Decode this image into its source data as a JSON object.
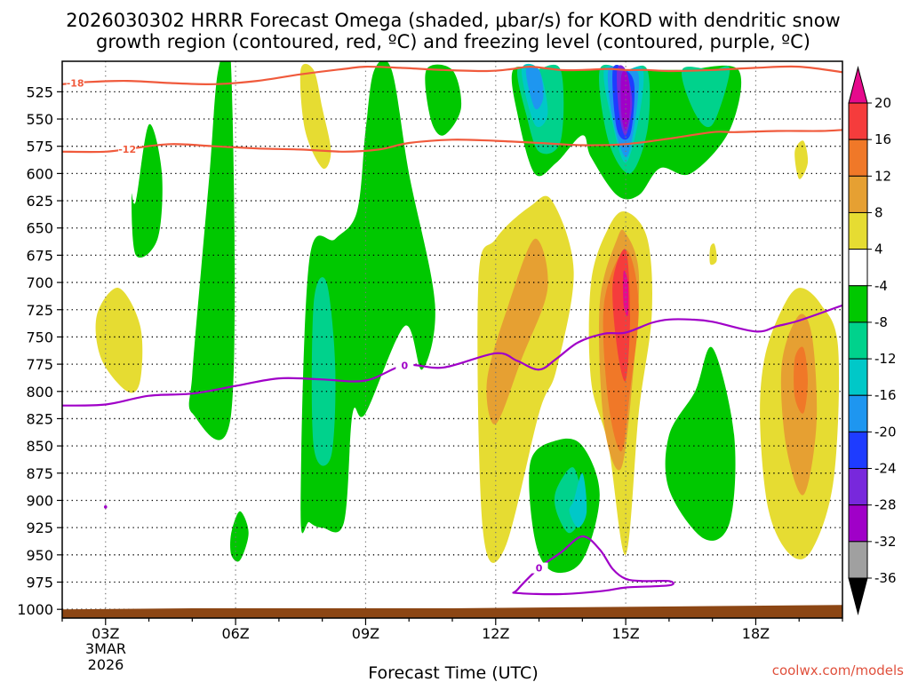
{
  "chart_data": {
    "type": "contour",
    "title_line1": "2026030302 HRRR Forecast Omega (shaded, μbar/s) for KORD with dendritic snow",
    "title_line2": "growth region (contoured, red, ºC) and freezing level (contoured, purple, ºC)",
    "xlabel": "Forecast Time (UTC)",
    "credit": "coolwx.com/models",
    "date_label": [
      "3MAR",
      "2026"
    ],
    "x_range": [
      2,
      20
    ],
    "y_range": [
      1008,
      497
    ],
    "y_ticks": [
      525,
      550,
      575,
      600,
      625,
      650,
      675,
      700,
      725,
      750,
      775,
      800,
      825,
      850,
      875,
      900,
      925,
      950,
      975,
      1000
    ],
    "x_ticks": [
      {
        "hour": 3,
        "label": "03Z"
      },
      {
        "hour": 6,
        "label": "06Z"
      },
      {
        "hour": 9,
        "label": "09Z"
      },
      {
        "hour": 12,
        "label": "12Z"
      },
      {
        "hour": 15,
        "label": "15Z"
      },
      {
        "hour": 18,
        "label": "18Z"
      }
    ],
    "colorbar": {
      "levels": [
        -36,
        -32,
        -28,
        -24,
        -20,
        -16,
        -12,
        -8,
        -4,
        4,
        8,
        12,
        16,
        20
      ],
      "labels": [
        "20",
        "16",
        "12",
        "8",
        "4",
        "-4",
        "-8",
        "-12",
        "-16",
        "-20",
        "-24",
        "-28",
        "-32",
        "-36"
      ],
      "colors": {
        "above_20": "#e60a8c",
        "16_20": "#f53c3c",
        "12_16": "#f07828",
        "8_12": "#e6a032",
        "4_8": "#e6dc32",
        "neutral": "#ffffff",
        "m8_m4": "#00c800",
        "m12_m8": "#00d28c",
        "m16_m12": "#00c8c8",
        "m20_m16": "#1e96f0",
        "m24_m20": "#1e3cff",
        "m28_m24": "#7828dc",
        "m32_m28": "#a000c8",
        "m36_m32": "#a0a0a0",
        "below_m36": "#000000"
      }
    },
    "omega_regions": [
      {
        "level": 4,
        "x": [
          2.8,
          3.3,
          3.8,
          3.8,
          3.5,
          2.9
        ],
        "y": [
          730,
          705,
          740,
          790,
          800,
          770
        ]
      },
      {
        "level": -4,
        "x": [
          3.7,
          4.0,
          4.3,
          4.2,
          3.7,
          3.6
        ],
        "y": [
          625,
          555,
          600,
          660,
          675,
          620
        ]
      },
      {
        "level": -4,
        "x": [
          5.0,
          5.2,
          5.4,
          5.6,
          5.9,
          5.9,
          5.0
        ],
        "y": [
          785,
          690,
          600,
          505,
          505,
          820,
          820
        ]
      },
      {
        "level": -4,
        "x": [
          5.9,
          6.1,
          6.3,
          6.1,
          5.9
        ],
        "y": [
          930,
          910,
          930,
          955,
          950
        ]
      },
      {
        "level": 4,
        "x": [
          7.5,
          7.8,
          8.0,
          8.2,
          8.0,
          7.6
        ],
        "y": [
          505,
          505,
          540,
          580,
          595,
          560
        ]
      },
      {
        "level": -4,
        "x": [
          7.5,
          7.7,
          8.3,
          8.8,
          9.0,
          9.2,
          9.6,
          10.0,
          10.6,
          10.3,
          9.9,
          9.0,
          8.7,
          8.5,
          8.0,
          7.7
        ],
        "y": [
          910,
          680,
          660,
          635,
          560,
          505,
          505,
          600,
          720,
          780,
          740,
          820,
          820,
          920,
          925,
          920
        ]
      },
      {
        "level": -8,
        "x": [
          7.8,
          8.1,
          8.3,
          8.2,
          7.8
        ],
        "y": [
          720,
          700,
          780,
          860,
          850
        ]
      },
      {
        "level": -4,
        "x": [
          10.4,
          11.0,
          11.2,
          10.8,
          10.5
        ],
        "y": [
          505,
          505,
          540,
          565,
          550
        ]
      },
      {
        "level": 4,
        "x": [
          11.6,
          12.0,
          12.8,
          13.3,
          13.8,
          13.4,
          13.0,
          12.2,
          11.7
        ],
        "y": [
          700,
          660,
          630,
          625,
          690,
          780,
          820,
          945,
          925
        ]
      },
      {
        "level": 8,
        "x": [
          11.8,
          12.3,
          12.9,
          13.2,
          12.6,
          12.0
        ],
        "y": [
          790,
          720,
          660,
          705,
          770,
          830
        ]
      },
      {
        "level": -4,
        "x": [
          12.8,
          13.4,
          14.0,
          14.4,
          14.0,
          13.3,
          12.9
        ],
        "y": [
          865,
          845,
          850,
          895,
          955,
          965,
          935
        ]
      },
      {
        "level": -8,
        "x": [
          13.4,
          13.8,
          14.0,
          13.7,
          13.4
        ],
        "y": [
          890,
          870,
          910,
          930,
          910
        ]
      },
      {
        "level": -12,
        "x": [
          13.8,
          14.0,
          14.1,
          13.9,
          13.7
        ],
        "y": [
          900,
          875,
          910,
          925,
          910
        ]
      },
      {
        "level": 4,
        "x": [
          14.2,
          14.6,
          15.0,
          15.5,
          15.6,
          15.3,
          15.0,
          14.6,
          14.2
        ],
        "y": [
          700,
          650,
          635,
          660,
          730,
          820,
          950,
          850,
          790
        ]
      },
      {
        "level": 8,
        "x": [
          14.4,
          14.8,
          15.0,
          15.3,
          15.2,
          14.9,
          14.5
        ],
        "y": [
          720,
          660,
          655,
          690,
          770,
          870,
          830
        ]
      },
      {
        "level": 12,
        "x": [
          14.5,
          15.0,
          15.3,
          15.1,
          14.9,
          14.6
        ],
        "y": [
          720,
          670,
          720,
          800,
          855,
          810
        ]
      },
      {
        "level": 16,
        "x": [
          14.7,
          15.0,
          15.1,
          15.0,
          14.8
        ],
        "y": [
          700,
          670,
          730,
          790,
          760
        ]
      },
      {
        "level": 20,
        "x": [
          14.95,
          15.05,
          15.05,
          14.95
        ],
        "y": [
          690,
          700,
          730,
          720
        ]
      },
      {
        "level": -4,
        "x": [
          12.4,
          13.0,
          13.5,
          13.9,
          14.1,
          14.5,
          15.3,
          15.9,
          16.0,
          16.4,
          17.6,
          17.4,
          16.5,
          15.8,
          15.3,
          14.8,
          14.2,
          14.0,
          13.4,
          12.9,
          12.5
        ],
        "y": [
          505,
          505,
          505,
          505,
          505,
          505,
          505,
          505,
          505,
          505,
          505,
          560,
          600,
          595,
          620,
          620,
          585,
          565,
          590,
          600,
          545
        ]
      },
      {
        "level": -8,
        "x": [
          12.5,
          12.9,
          13.5,
          13.5,
          13.0,
          12.7
        ],
        "y": [
          505,
          505,
          505,
          570,
          580,
          545
        ]
      },
      {
        "level": -12,
        "x": [
          12.6,
          13.0,
          13.2,
          12.9
        ],
        "y": [
          505,
          505,
          545,
          555
        ]
      },
      {
        "level": -16,
        "x": [
          12.7,
          13.0,
          13.1,
          12.9
        ],
        "y": [
          505,
          505,
          530,
          540
        ]
      },
      {
        "level": -8,
        "x": [
          14.4,
          15.0,
          15.5,
          15.5,
          15.1,
          14.6
        ],
        "y": [
          505,
          505,
          505,
          560,
          600,
          570
        ]
      },
      {
        "level": -12,
        "x": [
          14.5,
          15.0,
          15.4,
          15.3,
          15.0,
          14.7
        ],
        "y": [
          505,
          505,
          505,
          550,
          590,
          555
        ]
      },
      {
        "level": -16,
        "x": [
          14.6,
          15.0,
          15.3,
          15.2,
          15.0,
          14.7
        ],
        "y": [
          505,
          505,
          510,
          555,
          585,
          550
        ]
      },
      {
        "level": -20,
        "x": [
          14.7,
          15.0,
          15.2,
          15.1,
          14.8
        ],
        "y": [
          505,
          505,
          520,
          565,
          560
        ]
      },
      {
        "level": -24,
        "x": [
          14.8,
          15.0,
          15.15,
          15.0,
          14.85
        ],
        "y": [
          505,
          505,
          535,
          565,
          545
        ]
      },
      {
        "level": -28,
        "x": [
          14.9,
          15.05,
          15.1,
          15.0,
          14.9
        ],
        "y": [
          510,
          510,
          540,
          560,
          545
        ]
      },
      {
        "level": -8,
        "x": [
          16.3,
          17.0,
          17.4,
          17.0,
          16.6
        ],
        "y": [
          505,
          505,
          505,
          555,
          545
        ]
      },
      {
        "level": -4,
        "x": [
          16.0,
          16.6,
          17.0,
          17.5,
          17.4,
          16.8,
          16.0
        ],
        "y": [
          840,
          800,
          760,
          840,
          920,
          935,
          890
        ]
      },
      {
        "level": 4,
        "x": [
          16.95,
          17.05,
          17.1,
          16.95
        ],
        "y": [
          668,
          665,
          680,
          683
        ]
      },
      {
        "level": 4,
        "x": [
          18.9,
          19.1,
          19.2,
          19.0
        ],
        "y": [
          580,
          570,
          590,
          605
        ]
      },
      {
        "level": 4,
        "x": [
          18.2,
          18.6,
          19.0,
          19.5,
          19.9,
          19.8,
          19.3,
          18.8,
          18.3,
          18.1
        ],
        "y": [
          770,
          725,
          705,
          720,
          760,
          880,
          945,
          950,
          910,
          830
        ]
      },
      {
        "level": 8,
        "x": [
          18.6,
          19.0,
          19.3,
          19.4,
          19.1,
          18.7
        ],
        "y": [
          775,
          730,
          750,
          830,
          895,
          850
        ]
      },
      {
        "level": 12,
        "x": [
          18.9,
          19.1,
          19.2,
          19.1,
          18.9
        ],
        "y": [
          770,
          760,
          790,
          820,
          805
        ]
      }
    ],
    "dgz_lines": [
      {
        "label": "-18",
        "color": "#f05a3c",
        "label_at": 2.3,
        "x": [
          2.0,
          2.6,
          3.5,
          4.5,
          5.5,
          6.5,
          7.5,
          8.5,
          9.0,
          9.8,
          10.8,
          11.8,
          12.4,
          12.8,
          13.5,
          14.0,
          14.6,
          15.0,
          15.5,
          16.0,
          17.0,
          18.0,
          19.0,
          20.0
        ],
        "y": [
          518,
          516,
          515,
          517,
          518,
          515,
          509,
          504,
          502,
          503,
          505,
          506,
          504,
          502,
          505,
          505,
          504,
          505,
          505,
          506,
          505,
          503,
          502,
          507
        ]
      },
      {
        "label": "-12",
        "color": "#f05a3c",
        "label_at": 3.5,
        "x": [
          2.0,
          3.0,
          3.6,
          4.5,
          5.5,
          6.5,
          7.5,
          8.5,
          9.3,
          10.0,
          11.0,
          12.0,
          13.0,
          14.0,
          15.0,
          16.0,
          17.0,
          17.5,
          18.5,
          19.5,
          20.0
        ],
        "y": [
          580,
          580,
          577,
          573,
          575,
          577,
          578,
          580,
          578,
          572,
          569,
          570,
          572,
          574,
          573,
          568,
          562,
          562,
          561,
          561,
          560
        ]
      },
      {
        "label": "0",
        "color": "#a000c8",
        "label_at": 9.9,
        "x": [
          2.0,
          3.0,
          4.0,
          5.0,
          6.0,
          7.0,
          8.0,
          9.0,
          9.9,
          10.8,
          12.0,
          12.5,
          13.0,
          13.4,
          13.9,
          14.5,
          15.0,
          15.6,
          16.0,
          16.5,
          17.0,
          18.0,
          18.5,
          19.0,
          20.0
        ],
        "y": [
          813,
          812,
          804,
          802,
          795,
          788,
          789,
          790,
          776,
          778,
          765,
          772,
          780,
          770,
          755,
          747,
          746,
          737,
          734,
          734,
          736,
          745,
          740,
          735,
          721
        ]
      },
      {
        "label": "0",
        "color": "#a000c8",
        "label_at": 13.0,
        "closed": true,
        "x": [
          12.5,
          13.0,
          13.5,
          14.0,
          14.4,
          14.7,
          15.0,
          15.4,
          16.0,
          16.0,
          15.0,
          14.5,
          13.5,
          12.5
        ],
        "y": [
          982,
          962,
          948,
          933,
          945,
          963,
          972,
          974,
          974,
          978,
          980,
          983,
          986,
          985
        ]
      }
    ],
    "freeze_dot": {
      "x": 3.0,
      "y": 906,
      "color": "#a000c8"
    },
    "terrain": {
      "color": "#8c4614",
      "x": [
        2.0,
        5.0,
        8.0,
        11.0,
        14.0,
        17.0,
        20.0
      ],
      "y": [
        1000,
        999,
        999,
        999,
        998,
        997,
        996
      ]
    }
  }
}
